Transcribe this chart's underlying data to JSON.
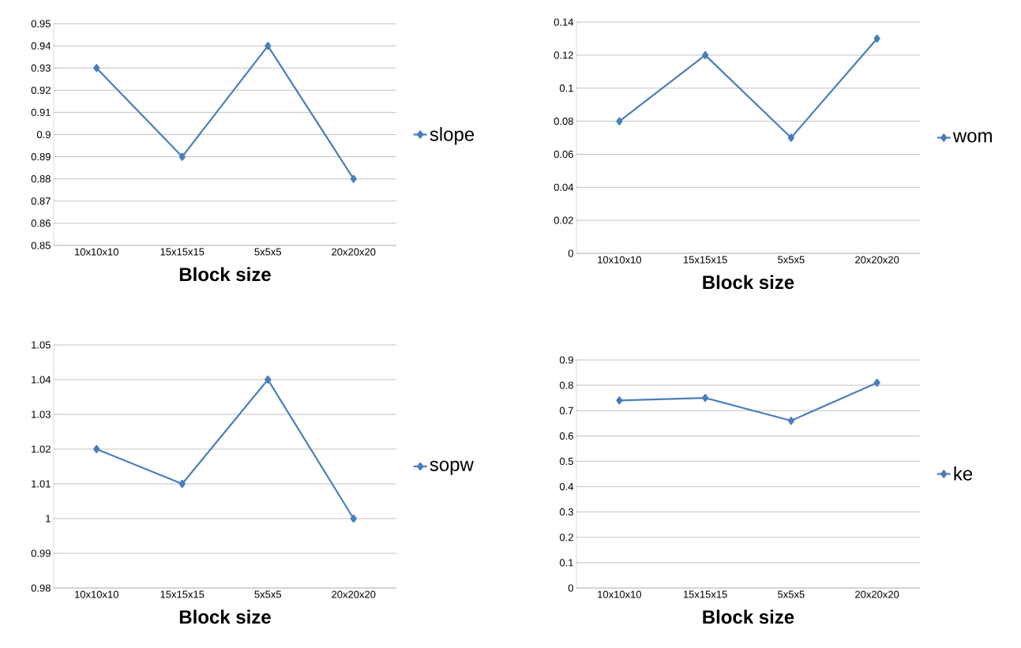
{
  "chart_data": [
    {
      "type": "line",
      "xlabel": "Block size",
      "categories": [
        "10x10x10",
        "15x15x15",
        "5x5x5",
        "20x20x20"
      ],
      "series": [
        {
          "name": "slope",
          "color": "#4a7ebb",
          "values": [
            0.93,
            0.89,
            0.94,
            0.88
          ]
        }
      ],
      "ylim": [
        0.85,
        0.95
      ],
      "yticks": [
        0.85,
        0.86,
        0.87,
        0.88,
        0.89,
        0.9,
        0.91,
        0.92,
        0.93,
        0.94,
        0.95
      ],
      "grid": "y",
      "legend": "right",
      "marker": "diamond"
    },
    {
      "type": "line",
      "xlabel": "Block size",
      "categories": [
        "10x10x10",
        "15x15x15",
        "5x5x5",
        "20x20x20"
      ],
      "series": [
        {
          "name": "wom",
          "color": "#4a7ebb",
          "values": [
            0.08,
            0.12,
            0.07,
            0.13
          ]
        }
      ],
      "ylim": [
        0,
        0.14
      ],
      "yticks": [
        0,
        0.02,
        0.04,
        0.06,
        0.08,
        0.1,
        0.12,
        0.14
      ],
      "grid": "y",
      "legend": "right",
      "marker": "diamond"
    },
    {
      "type": "line",
      "xlabel": "Block size",
      "categories": [
        "10x10x10",
        "15x15x15",
        "5x5x5",
        "20x20x20"
      ],
      "series": [
        {
          "name": "sopw",
          "color": "#4a7ebb",
          "values": [
            1.02,
            1.01,
            1.04,
            1.0
          ]
        }
      ],
      "ylim": [
        0.98,
        1.05
      ],
      "yticks": [
        0.98,
        0.99,
        1,
        1.01,
        1.02,
        1.03,
        1.04,
        1.05
      ],
      "grid": "y",
      "legend": "right",
      "marker": "diamond"
    },
    {
      "type": "line",
      "xlabel": "Block size",
      "categories": [
        "10x10x10",
        "15x15x15",
        "5x5x5",
        "20x20x20"
      ],
      "series": [
        {
          "name": "ke",
          "color": "#4a7ebb",
          "values": [
            0.74,
            0.75,
            0.66,
            0.81
          ]
        }
      ],
      "ylim": [
        0,
        0.9
      ],
      "yticks": [
        0,
        0.1,
        0.2,
        0.3,
        0.4,
        0.5,
        0.6,
        0.7,
        0.8,
        0.9
      ],
      "grid": "y",
      "legend": "right",
      "marker": "diamond"
    }
  ]
}
